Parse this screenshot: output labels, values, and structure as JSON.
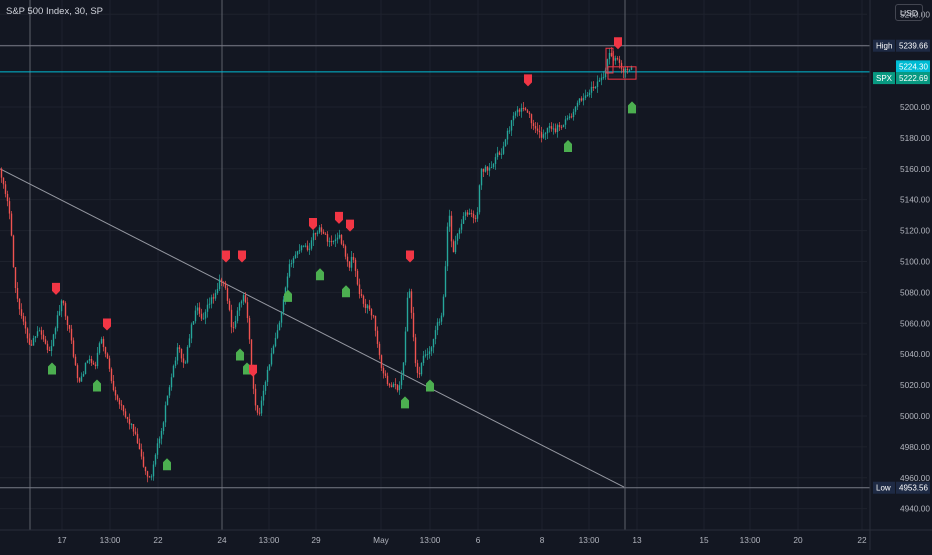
{
  "header": {
    "title": "S&P 500 Index, 30, SP",
    "currency": "USD"
  },
  "colors": {
    "background": "#131722",
    "grid": "#1e222d",
    "up": "#26a69a",
    "down": "#ef5350",
    "axis_text": "#b2b5be",
    "trend_line": "#9598a1",
    "high_line": "#787b86",
    "last_price": "#00bcd4",
    "buy_signal": "#4caf50",
    "sell_signal": "#f23645",
    "label_dark": "#1e2a44",
    "label_cyan": "#00bcd4",
    "label_green": "#089981"
  },
  "price_labels": {
    "high": {
      "name": "High",
      "value": "5239.66"
    },
    "last": {
      "value": "5224.30"
    },
    "spx": {
      "name": "SPX",
      "value": "5222.69"
    },
    "low": {
      "name": "Low",
      "value": "4953.56"
    }
  },
  "chart_data": {
    "type": "candlestick",
    "title": "S&P 500 Index, 30, SP",
    "currency": "USD",
    "xlabel": "",
    "ylabel": "",
    "ylim": [
      4930,
      5255
    ],
    "y_ticks": [
      "5260.00",
      "5240.00",
      "5220.00",
      "5200.00",
      "5180.00",
      "5160.00",
      "5140.00",
      "5120.00",
      "5100.00",
      "5080.00",
      "5060.00",
      "5040.00",
      "5020.00",
      "5000.00",
      "4980.00",
      "4960.00",
      "4940.00"
    ],
    "x_ticks": [
      "17",
      "13:00",
      "22",
      "24",
      "13:00",
      "29",
      "May",
      "13:00",
      "6",
      "8",
      "13:00",
      "13",
      "15",
      "13:00",
      "20",
      "22"
    ],
    "high": 5239.66,
    "low": 4953.56,
    "last": 5224.3,
    "spx": 5222.69,
    "path_points": [
      [
        0,
        5160
      ],
      [
        4,
        5145
      ],
      [
        10,
        5130
      ],
      [
        14,
        5085
      ],
      [
        22,
        5062
      ],
      [
        30,
        5045
      ],
      [
        38,
        5058
      ],
      [
        46,
        5045
      ],
      [
        50,
        5040
      ],
      [
        56,
        5062
      ],
      [
        62,
        5075
      ],
      [
        70,
        5052
      ],
      [
        78,
        5020
      ],
      [
        88,
        5038
      ],
      [
        94,
        5030
      ],
      [
        100,
        5050
      ],
      [
        106,
        5040
      ],
      [
        112,
        5020
      ],
      [
        118,
        5010
      ],
      [
        124,
        5000
      ],
      [
        130,
        4995
      ],
      [
        136,
        4985
      ],
      [
        144,
        4965
      ],
      [
        150,
        4958
      ],
      [
        156,
        4980
      ],
      [
        162,
        4990
      ],
      [
        166,
        5010
      ],
      [
        172,
        5030
      ],
      [
        178,
        5045
      ],
      [
        184,
        5032
      ],
      [
        190,
        5055
      ],
      [
        196,
        5070
      ],
      [
        202,
        5060
      ],
      [
        208,
        5072
      ],
      [
        214,
        5078
      ],
      [
        220,
        5088
      ],
      [
        224,
        5085
      ],
      [
        228,
        5072
      ],
      [
        232,
        5055
      ],
      [
        236,
        5065
      ],
      [
        242,
        5078
      ],
      [
        246,
        5072
      ],
      [
        250,
        5040
      ],
      [
        254,
        5008
      ],
      [
        258,
        4998
      ],
      [
        262,
        5015
      ],
      [
        268,
        5032
      ],
      [
        272,
        5042
      ],
      [
        276,
        5052
      ],
      [
        280,
        5062
      ],
      [
        284,
        5078
      ],
      [
        290,
        5100
      ],
      [
        296,
        5105
      ],
      [
        302,
        5112
      ],
      [
        308,
        5108
      ],
      [
        314,
        5118
      ],
      [
        320,
        5122
      ],
      [
        326,
        5115
      ],
      [
        332,
        5112
      ],
      [
        338,
        5118
      ],
      [
        344,
        5108
      ],
      [
        348,
        5095
      ],
      [
        352,
        5105
      ],
      [
        356,
        5088
      ],
      [
        360,
        5078
      ],
      [
        364,
        5072
      ],
      [
        370,
        5068
      ],
      [
        374,
        5062
      ],
      [
        378,
        5040
      ],
      [
        384,
        5025
      ],
      [
        390,
        5020
      ],
      [
        396,
        5018
      ],
      [
        400,
        5020
      ],
      [
        404,
        5042
      ],
      [
        408,
        5088
      ],
      [
        412,
        5060
      ],
      [
        416,
        5025
      ],
      [
        420,
        5030
      ],
      [
        424,
        5040
      ],
      [
        430,
        5040
      ],
      [
        436,
        5058
      ],
      [
        442,
        5065
      ],
      [
        446,
        5108
      ],
      [
        448,
        5138
      ],
      [
        452,
        5105
      ],
      [
        458,
        5120
      ],
      [
        464,
        5130
      ],
      [
        470,
        5132
      ],
      [
        476,
        5125
      ],
      [
        480,
        5158
      ],
      [
        486,
        5160
      ],
      [
        490,
        5162
      ],
      [
        496,
        5168
      ],
      [
        502,
        5172
      ],
      [
        508,
        5185
      ],
      [
        514,
        5195
      ],
      [
        520,
        5198
      ],
      [
        526,
        5200
      ],
      [
        530,
        5192
      ],
      [
        534,
        5185
      ],
      [
        540,
        5182
      ],
      [
        544,
        5180
      ],
      [
        548,
        5190
      ],
      [
        554,
        5185
      ],
      [
        560,
        5188
      ],
      [
        566,
        5192
      ],
      [
        572,
        5195
      ],
      [
        576,
        5200
      ],
      [
        580,
        5205
      ],
      [
        586,
        5208
      ],
      [
        592,
        5212
      ],
      [
        596,
        5214
      ],
      [
        600,
        5218
      ],
      [
        604,
        5220
      ],
      [
        608,
        5236
      ],
      [
        612,
        5232
      ],
      [
        616,
        5230
      ],
      [
        620,
        5228
      ],
      [
        624,
        5222
      ],
      [
        628,
        5226
      ],
      [
        632,
        5224
      ]
    ],
    "trend_line": [
      [
        0,
        5160
      ],
      [
        624,
        4954
      ]
    ],
    "buy_signals": [
      [
        52,
        5034
      ],
      [
        97,
        5023
      ],
      [
        167,
        4972
      ],
      [
        240,
        5043
      ],
      [
        247,
        5034
      ],
      [
        288,
        5081
      ],
      [
        320,
        5095
      ],
      [
        346,
        5084
      ],
      [
        405,
        5012
      ],
      [
        430,
        5023
      ],
      [
        568,
        5178
      ],
      [
        632,
        5203
      ]
    ],
    "sell_signals": [
      [
        56,
        5079
      ],
      [
        107,
        5056
      ],
      [
        226,
        5100
      ],
      [
        242,
        5100
      ],
      [
        253,
        5026
      ],
      [
        313,
        5121
      ],
      [
        339,
        5125
      ],
      [
        350,
        5120
      ],
      [
        410,
        5100
      ],
      [
        528,
        5214
      ],
      [
        618,
        5238
      ]
    ],
    "series": [
      {
        "name": "SPX",
        "values": []
      }
    ]
  }
}
